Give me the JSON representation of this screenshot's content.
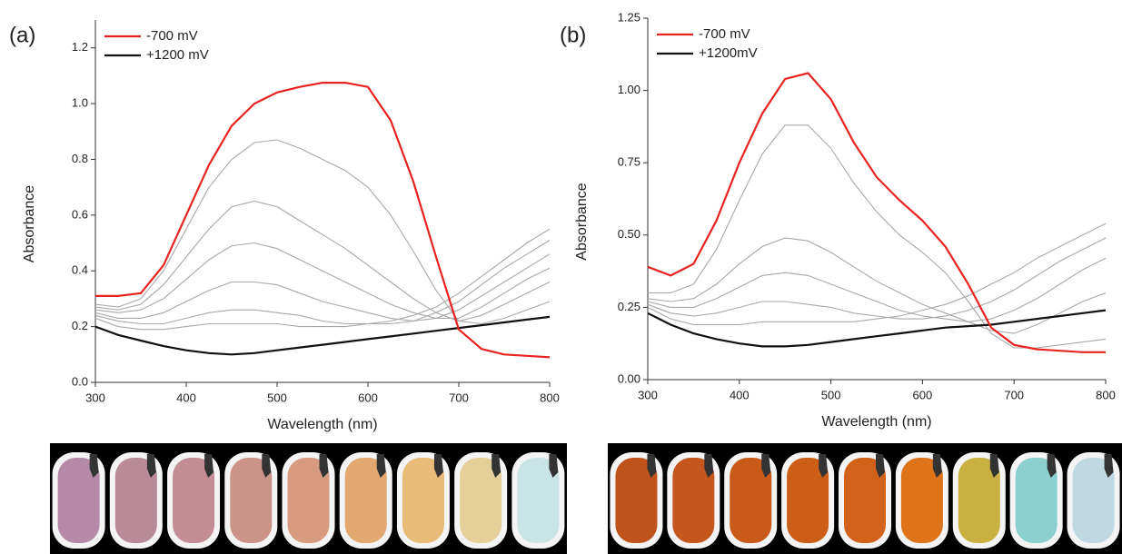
{
  "chart_data": [
    {
      "type": "line",
      "label": "(a)",
      "x_label": "Wavelength (nm)",
      "y_label": "Absorbance",
      "x": [
        300,
        325,
        350,
        375,
        400,
        425,
        450,
        475,
        500,
        525,
        550,
        575,
        600,
        625,
        650,
        675,
        700,
        725,
        750,
        775,
        800
      ],
      "xlim": [
        300,
        800
      ],
      "xticks": [
        300,
        400,
        500,
        600,
        700,
        800
      ],
      "ylim": [
        0,
        1.3
      ],
      "yticks": [
        {
          "value": 0,
          "label": "0.0"
        },
        0.2,
        0.4,
        0.6,
        0.8,
        {
          "value": 1,
          "label": "1.0"
        },
        1.2
      ],
      "series": [
        {
          "name": "-700 mV",
          "color": "#e8231f",
          "values": [
            0.31,
            0.31,
            0.32,
            0.42,
            0.6,
            0.78,
            0.92,
            1.0,
            1.04,
            1.06,
            1.075,
            1.075,
            1.06,
            0.94,
            0.72,
            0.45,
            0.19,
            0.12,
            0.1,
            0.095,
            0.09
          ]
        },
        {
          "name": "+1200 mV",
          "color": "#111111",
          "values": [
            0.2,
            0.17,
            0.15,
            0.13,
            0.115,
            0.105,
            0.1,
            0.105,
            0.115,
            0.125,
            0.135,
            0.145,
            0.155,
            0.165,
            0.175,
            0.185,
            0.195,
            0.205,
            0.215,
            0.225,
            0.235
          ]
        },
        {
          "color": "#a8a8a8",
          "values": [
            0.28,
            0.27,
            0.3,
            0.4,
            0.55,
            0.7,
            0.8,
            0.86,
            0.87,
            0.84,
            0.8,
            0.76,
            0.7,
            0.6,
            0.47,
            0.33,
            0.22,
            0.21,
            0.23,
            0.26,
            0.29
          ]
        },
        {
          "color": "#a8a8a8",
          "values": [
            0.27,
            0.26,
            0.28,
            0.35,
            0.45,
            0.55,
            0.63,
            0.65,
            0.63,
            0.58,
            0.53,
            0.48,
            0.42,
            0.36,
            0.3,
            0.25,
            0.22,
            0.24,
            0.28,
            0.32,
            0.36
          ]
        },
        {
          "color": "#a8a8a8",
          "values": [
            0.26,
            0.25,
            0.26,
            0.3,
            0.37,
            0.44,
            0.49,
            0.5,
            0.48,
            0.44,
            0.4,
            0.36,
            0.32,
            0.28,
            0.25,
            0.23,
            0.23,
            0.27,
            0.32,
            0.37,
            0.41
          ]
        },
        {
          "color": "#a8a8a8",
          "values": [
            0.25,
            0.23,
            0.23,
            0.25,
            0.29,
            0.33,
            0.36,
            0.36,
            0.35,
            0.32,
            0.29,
            0.27,
            0.25,
            0.23,
            0.22,
            0.23,
            0.26,
            0.31,
            0.36,
            0.41,
            0.46
          ]
        },
        {
          "color": "#a8a8a8",
          "values": [
            0.24,
            0.22,
            0.21,
            0.21,
            0.23,
            0.25,
            0.26,
            0.26,
            0.25,
            0.24,
            0.22,
            0.21,
            0.21,
            0.21,
            0.22,
            0.25,
            0.29,
            0.35,
            0.41,
            0.46,
            0.51
          ]
        },
        {
          "color": "#a8a8a8",
          "values": [
            0.23,
            0.2,
            0.19,
            0.19,
            0.2,
            0.21,
            0.21,
            0.21,
            0.21,
            0.2,
            0.2,
            0.2,
            0.21,
            0.22,
            0.24,
            0.27,
            0.32,
            0.38,
            0.44,
            0.5,
            0.55
          ]
        }
      ]
    },
    {
      "type": "line",
      "label": "(b)",
      "x_label": "Wavelength (nm)",
      "y_label": "Absorbance",
      "x": [
        300,
        325,
        350,
        375,
        400,
        425,
        450,
        475,
        500,
        525,
        550,
        575,
        600,
        625,
        650,
        675,
        700,
        725,
        750,
        775,
        800
      ],
      "xlim": [
        300,
        800
      ],
      "xticks": [
        300,
        400,
        500,
        600,
        700,
        800
      ],
      "ylim": [
        0,
        1.25
      ],
      "yticks": [
        {
          "value": 0,
          "label": "0.00"
        },
        0.25,
        {
          "value": 0.5,
          "label": "0.50"
        },
        0.75,
        {
          "value": 1,
          "label": "1.00"
        },
        1.25
      ],
      "series": [
        {
          "name": "-700 mV",
          "color": "#e8231f",
          "values": [
            0.39,
            0.36,
            0.4,
            0.55,
            0.75,
            0.92,
            1.04,
            1.06,
            0.97,
            0.82,
            0.7,
            0.62,
            0.55,
            0.46,
            0.33,
            0.18,
            0.12,
            0.105,
            0.1,
            0.095,
            0.095
          ]
        },
        {
          "name": "+1200mV",
          "color": "#111111",
          "values": [
            0.23,
            0.19,
            0.16,
            0.14,
            0.125,
            0.115,
            0.115,
            0.12,
            0.13,
            0.14,
            0.15,
            0.16,
            0.17,
            0.18,
            0.185,
            0.19,
            0.2,
            0.21,
            0.22,
            0.23,
            0.24
          ]
        },
        {
          "color": "#a8a8a8",
          "values": [
            0.3,
            0.3,
            0.33,
            0.45,
            0.62,
            0.78,
            0.88,
            0.88,
            0.8,
            0.68,
            0.58,
            0.5,
            0.44,
            0.37,
            0.27,
            0.16,
            0.11,
            0.11,
            0.12,
            0.13,
            0.14
          ]
        },
        {
          "color": "#a8a8a8",
          "values": [
            0.28,
            0.27,
            0.28,
            0.33,
            0.4,
            0.46,
            0.49,
            0.48,
            0.44,
            0.39,
            0.34,
            0.3,
            0.26,
            0.23,
            0.2,
            0.17,
            0.16,
            0.19,
            0.23,
            0.27,
            0.3
          ]
        },
        {
          "color": "#a8a8a8",
          "values": [
            0.27,
            0.25,
            0.25,
            0.28,
            0.32,
            0.36,
            0.37,
            0.36,
            0.33,
            0.3,
            0.27,
            0.24,
            0.22,
            0.21,
            0.2,
            0.21,
            0.24,
            0.28,
            0.33,
            0.38,
            0.42
          ]
        },
        {
          "color": "#a8a8a8",
          "values": [
            0.26,
            0.23,
            0.22,
            0.23,
            0.25,
            0.27,
            0.27,
            0.26,
            0.25,
            0.23,
            0.22,
            0.21,
            0.21,
            0.22,
            0.24,
            0.27,
            0.31,
            0.36,
            0.41,
            0.45,
            0.49
          ]
        },
        {
          "color": "#a8a8a8",
          "values": [
            0.25,
            0.21,
            0.19,
            0.19,
            0.19,
            0.2,
            0.2,
            0.2,
            0.2,
            0.2,
            0.21,
            0.22,
            0.24,
            0.26,
            0.29,
            0.33,
            0.37,
            0.42,
            0.46,
            0.5,
            0.54
          ]
        }
      ]
    }
  ]
}
